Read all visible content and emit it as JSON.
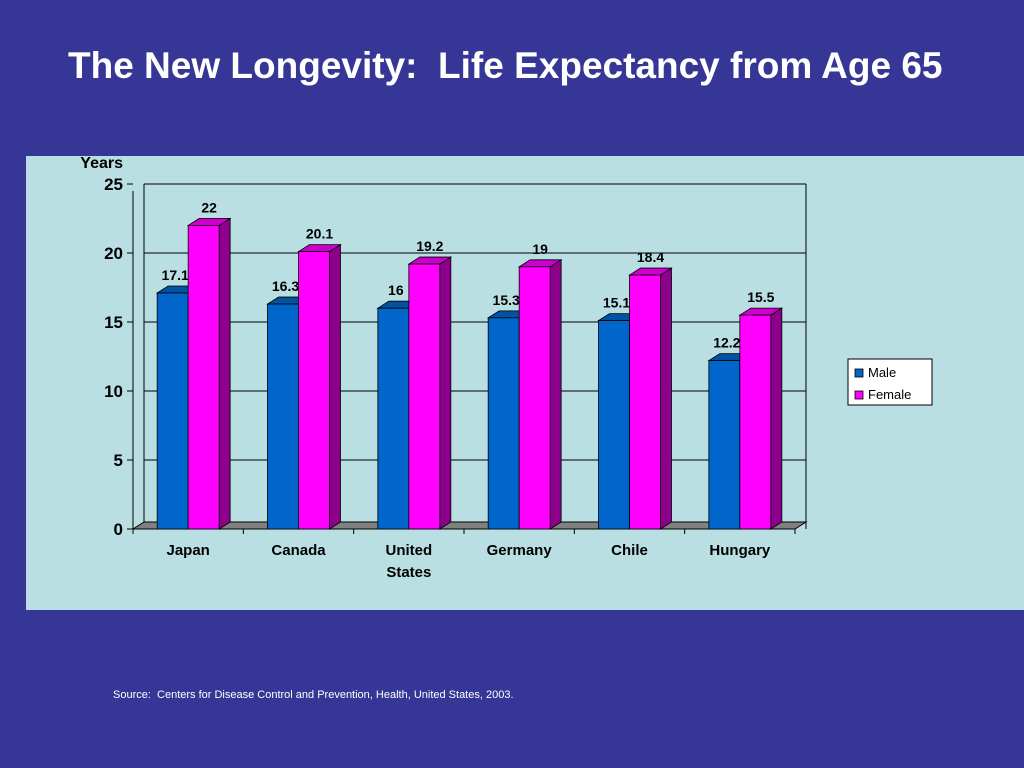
{
  "slide": {
    "title": "The New Longevity:  Life Expectancy from Age 65",
    "source": "Source:  Centers for Disease Control and Prevention, Health, United States, 2003."
  },
  "colors": {
    "background": "#363696",
    "chart_area": "#b9dfe3",
    "male": "#0066cc",
    "female": "#ff00ff",
    "floor": "#808080"
  },
  "chart_data": {
    "type": "bar",
    "title": "",
    "xlabel": "",
    "ylabel": "Years",
    "ylim": [
      0,
      25
    ],
    "yticks": [
      0,
      5,
      10,
      15,
      20,
      25
    ],
    "grid": true,
    "legend_position": "right",
    "categories": [
      "Japan",
      "Canada",
      "United States",
      "Germany",
      "Chile",
      "Hungary"
    ],
    "category_label_lines": [
      [
        "Japan"
      ],
      [
        "Canada"
      ],
      [
        "United",
        "States"
      ],
      [
        "Germany"
      ],
      [
        "Chile"
      ],
      [
        "Hungary"
      ]
    ],
    "series": [
      {
        "name": "Male",
        "color": "#0066cc",
        "values": [
          17.1,
          16.3,
          16,
          15.3,
          15.1,
          12.2
        ],
        "labels": [
          "17.1",
          "16.3",
          "16",
          "15.3",
          "15.1",
          "12.2"
        ]
      },
      {
        "name": "Female",
        "color": "#ff00ff",
        "values": [
          22,
          20.1,
          19.2,
          19,
          18.4,
          15.5
        ],
        "labels": [
          "22",
          "20.1",
          "19.2",
          "19",
          "18.4",
          "15.5"
        ]
      }
    ]
  }
}
